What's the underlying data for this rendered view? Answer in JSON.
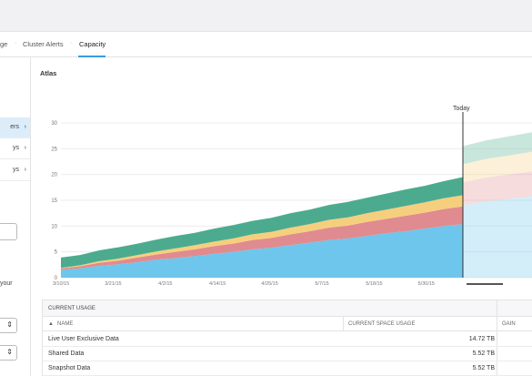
{
  "tabs": [
    {
      "label": "ge"
    },
    {
      "label": "Cluster Alerts"
    },
    {
      "label": "Capacity"
    }
  ],
  "sidebar": {
    "items": [
      {
        "label": "ers",
        "chevron": "›"
      },
      {
        "label": "ys",
        "chevron": "›"
      },
      {
        "label": "ys",
        "chevron": "›"
      }
    ],
    "text": "your",
    "selects": [
      "⇕",
      "⇕"
    ]
  },
  "chart": {
    "title": "Atlas",
    "today_label": "Today"
  },
  "chart_data": {
    "type": "area",
    "ylim": [
      0,
      30
    ],
    "yticks": [
      0,
      5,
      10,
      15,
      20,
      25,
      30
    ],
    "x_tick_labels": [
      "3/10/15",
      "3/21/15",
      "4/2/15",
      "4/14/15",
      "4/25/15",
      "5/7/15",
      "5/18/15",
      "5/30/15"
    ],
    "stacked": true,
    "series": [
      {
        "color": "#6ec6ec",
        "values": [
          1.5,
          1.8,
          2.3,
          2.6,
          3.0,
          3.5,
          3.8,
          4.2,
          4.6,
          5.0,
          5.5,
          5.8,
          6.3,
          6.8,
          7.3,
          7.6,
          8.1,
          8.6,
          9.0,
          9.5,
          10.0,
          10.4
        ],
        "forecast": [
          14.0,
          14.8,
          15.3,
          15.8
        ]
      },
      {
        "color": "#e08b8f",
        "values": [
          0.3,
          0.4,
          0.6,
          0.7,
          0.9,
          1.0,
          1.2,
          1.3,
          1.5,
          1.6,
          1.8,
          1.9,
          2.1,
          2.2,
          2.4,
          2.5,
          2.7,
          2.8,
          3.0,
          3.1,
          3.3,
          3.4
        ],
        "forecast": [
          4.5,
          4.6,
          4.7,
          4.8
        ]
      },
      {
        "color": "#f6cf7e",
        "values": [
          0.1,
          0.2,
          0.3,
          0.4,
          0.5,
          0.6,
          0.7,
          0.8,
          0.9,
          1.0,
          1.1,
          1.2,
          1.3,
          1.4,
          1.5,
          1.6,
          1.7,
          1.8,
          1.9,
          2.0,
          2.1,
          2.2
        ],
        "forecast": [
          3.5,
          3.6,
          3.7,
          3.8
        ]
      },
      {
        "color": "#4cab8f",
        "values": [
          2.0,
          2.0,
          2.1,
          2.2,
          2.2,
          2.3,
          2.4,
          2.4,
          2.5,
          2.6,
          2.6,
          2.7,
          2.8,
          2.8,
          2.9,
          3.0,
          3.0,
          3.1,
          3.2,
          3.2,
          3.3,
          3.5
        ],
        "forecast": [
          3.5,
          3.6,
          3.7,
          3.8
        ]
      }
    ]
  },
  "usage": {
    "header": "CURRENT USAGE",
    "columns": {
      "name": "NAME",
      "space": "CURRENT SPACE USAGE",
      "gain": "GAIN"
    },
    "sort_glyph": "▲",
    "rows": [
      {
        "name": "Live User Exclusive Data",
        "value": "14.72 TB"
      },
      {
        "name": "Shared Data",
        "value": "5.52 TB"
      },
      {
        "name": "Snapshot Data",
        "value": "5.52 TB"
      }
    ]
  }
}
